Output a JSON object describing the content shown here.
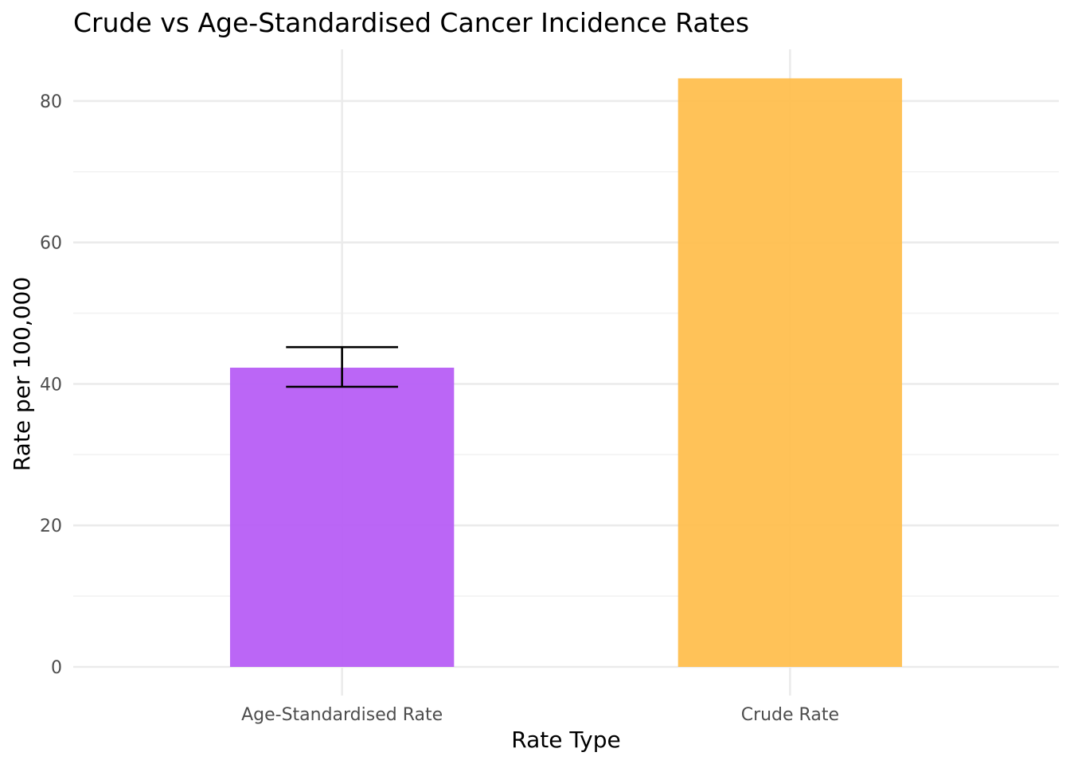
{
  "chart_data": {
    "type": "bar",
    "title": "Crude vs Age-Standardised Cancer Incidence Rates",
    "xlabel": "Rate Type",
    "ylabel": "Rate per 100,000",
    "categories": [
      "Age-Standardised Rate",
      "Crude Rate"
    ],
    "values": [
      42.3,
      83.2
    ],
    "error_bars": [
      {
        "category": "Age-Standardised Rate",
        "lower": 39.6,
        "upper": 45.2
      },
      null
    ],
    "colors": [
      "#b75ef6",
      "#ffbf4f"
    ],
    "error_bar_color": "#000000",
    "ylim": [
      0,
      87.3
    ],
    "yticks": [
      0,
      20,
      40,
      60,
      80
    ],
    "ytick_labels": [
      "0",
      "20",
      "40",
      "60",
      "80"
    ],
    "grid": true,
    "legend": "none"
  }
}
